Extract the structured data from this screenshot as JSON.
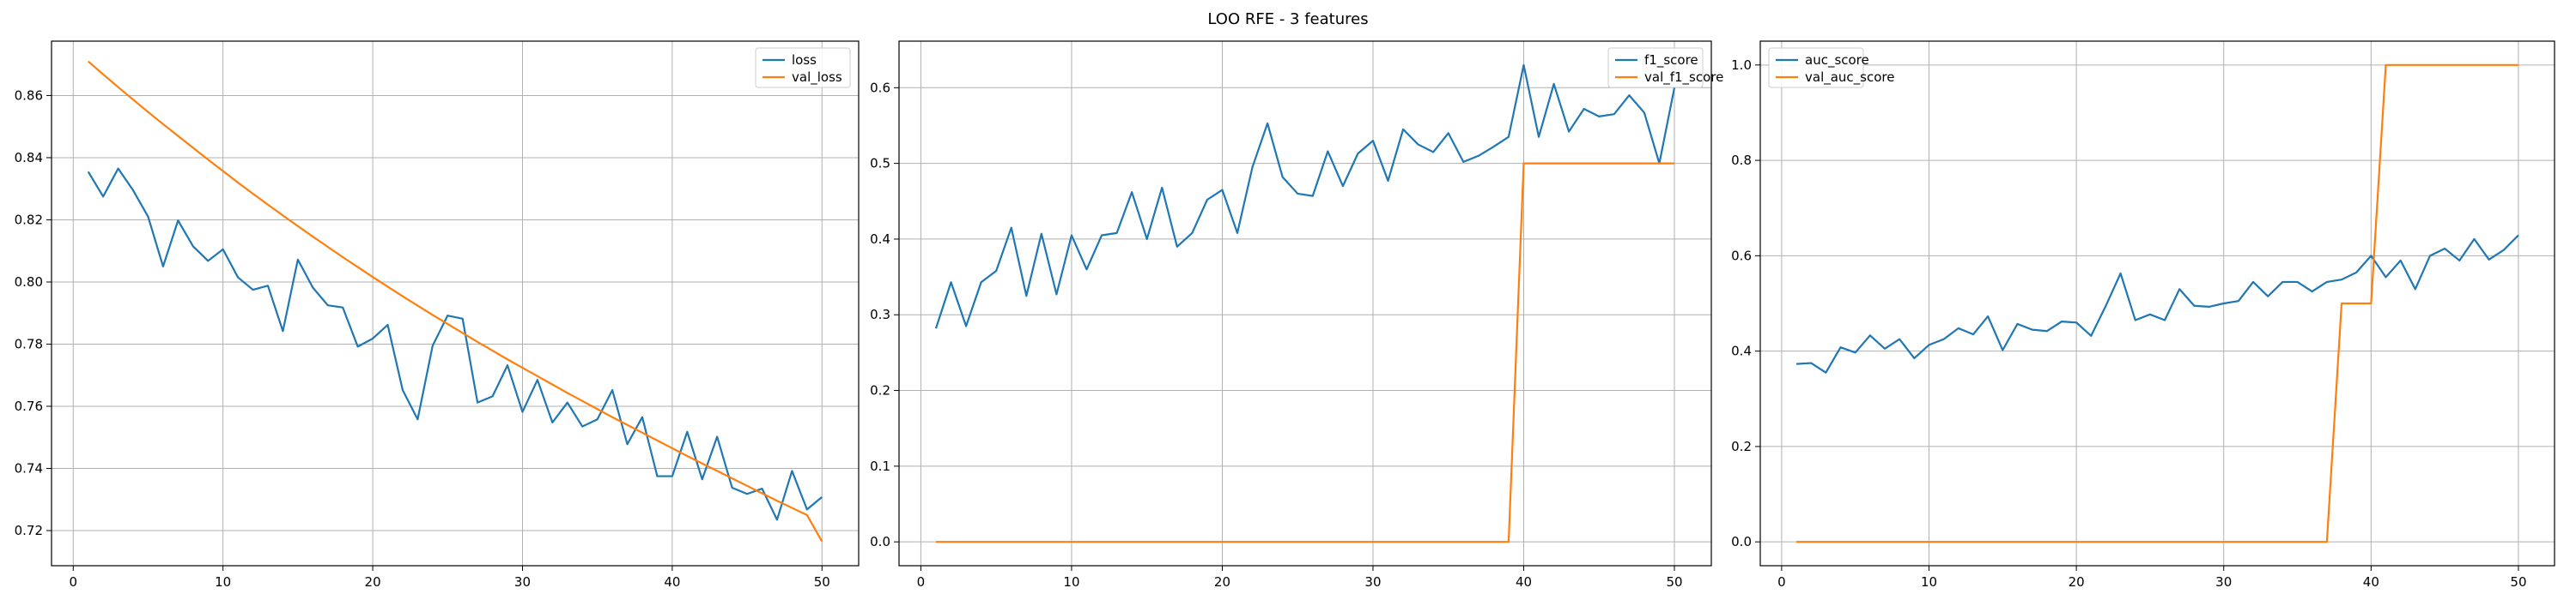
{
  "figure": {
    "suptitle": "LOO RFE - 3 features"
  },
  "colors": {
    "series1": "#1f77b4",
    "series2": "#ff7f0e",
    "grid": "#b0b0b0"
  },
  "chart_data": [
    {
      "type": "line",
      "grid": true,
      "legend_position": "top-right",
      "xlim": [
        -1.45,
        52.45
      ],
      "ylim": [
        0.7087,
        0.8775
      ],
      "xticks": [
        0,
        10,
        20,
        30,
        40,
        50
      ],
      "yticks": [
        0.72,
        0.74,
        0.76,
        0.78,
        0.8,
        0.82,
        0.84,
        0.86
      ],
      "ytick_labels": [
        "0.72",
        "0.74",
        "0.76",
        "0.78",
        "0.80",
        "0.82",
        "0.84",
        "0.86"
      ],
      "x": [
        1,
        2,
        3,
        4,
        5,
        6,
        7,
        8,
        9,
        10,
        11,
        12,
        13,
        14,
        15,
        16,
        17,
        18,
        19,
        20,
        21,
        22,
        23,
        24,
        25,
        26,
        27,
        28,
        29,
        30,
        31,
        32,
        33,
        34,
        35,
        36,
        37,
        38,
        39,
        40,
        41,
        42,
        43,
        44,
        45,
        46,
        47,
        48,
        49,
        50
      ],
      "series": [
        {
          "name": "loss",
          "values": [
            0.8355,
            0.8275,
            0.8365,
            0.8295,
            0.821,
            0.805,
            0.8198,
            0.8115,
            0.8068,
            0.8105,
            0.8015,
            0.7975,
            0.7988,
            0.7842,
            0.8072,
            0.7982,
            0.7925,
            0.7918,
            0.7792,
            0.7818,
            0.7862,
            0.7652,
            0.7558,
            0.7795,
            0.7892,
            0.7882,
            0.7612,
            0.7632,
            0.7732,
            0.7582,
            0.7685,
            0.7548,
            0.7612,
            0.7535,
            0.7558,
            0.7652,
            0.7478,
            0.7565,
            0.7375,
            0.7375,
            0.7518,
            0.7365,
            0.7502,
            0.7338,
            0.7318,
            0.7335,
            0.7235,
            0.7392,
            0.7268,
            0.7308
          ]
        },
        {
          "name": "val_loss",
          "values": [
            0.871,
            0.8668,
            0.8627,
            0.8587,
            0.8547,
            0.8508,
            0.847,
            0.8432,
            0.8394,
            0.8357,
            0.832,
            0.8284,
            0.8249,
            0.8214,
            0.818,
            0.8146,
            0.8113,
            0.808,
            0.8048,
            0.8016,
            0.7985,
            0.7954,
            0.7924,
            0.7894,
            0.7865,
            0.7836,
            0.7807,
            0.7779,
            0.7751,
            0.7724,
            0.7697,
            0.767,
            0.7643,
            0.7617,
            0.7591,
            0.7565,
            0.754,
            0.7515,
            0.749,
            0.7465,
            0.744,
            0.7416,
            0.7392,
            0.7368,
            0.7344,
            0.732,
            0.7296,
            0.7273,
            0.725,
            0.7165
          ]
        }
      ]
    },
    {
      "type": "line",
      "grid": true,
      "legend_position": "top-right",
      "xlim": [
        -1.45,
        52.45
      ],
      "ylim": [
        -0.0315,
        0.6615
      ],
      "xticks": [
        0,
        10,
        20,
        30,
        40,
        50
      ],
      "yticks": [
        0.0,
        0.1,
        0.2,
        0.3,
        0.4,
        0.5,
        0.6
      ],
      "ytick_labels": [
        "0.0",
        "0.1",
        "0.2",
        "0.3",
        "0.4",
        "0.5",
        "0.6"
      ],
      "x": [
        1,
        2,
        3,
        4,
        5,
        6,
        7,
        8,
        9,
        10,
        11,
        12,
        13,
        14,
        15,
        16,
        17,
        18,
        19,
        20,
        21,
        22,
        23,
        24,
        25,
        26,
        27,
        28,
        29,
        30,
        31,
        32,
        33,
        34,
        35,
        36,
        37,
        38,
        39,
        40,
        41,
        42,
        43,
        44,
        45,
        46,
        47,
        48,
        49,
        50
      ],
      "series": [
        {
          "name": "f1_score",
          "values": [
            0.282,
            0.343,
            0.285,
            0.343,
            0.358,
            0.415,
            0.325,
            0.407,
            0.327,
            0.405,
            0.36,
            0.405,
            0.408,
            0.462,
            0.4,
            0.468,
            0.39,
            0.408,
            0.452,
            0.465,
            0.408,
            0.495,
            0.553,
            0.482,
            0.46,
            0.457,
            0.516,
            0.47,
            0.513,
            0.53,
            0.477,
            0.545,
            0.525,
            0.515,
            0.54,
            0.502,
            0.51,
            0.522,
            0.535,
            0.63,
            0.535,
            0.605,
            0.542,
            0.572,
            0.562,
            0.565,
            0.59,
            0.567,
            0.5,
            0.6
          ]
        },
        {
          "name": "val_f1_score",
          "values": [
            0,
            0,
            0,
            0,
            0,
            0,
            0,
            0,
            0,
            0,
            0,
            0,
            0,
            0,
            0,
            0,
            0,
            0,
            0,
            0,
            0,
            0,
            0,
            0,
            0,
            0,
            0,
            0,
            0,
            0,
            0,
            0,
            0,
            0,
            0,
            0,
            0,
            0,
            0,
            0.5,
            0.5,
            0.5,
            0.5,
            0.5,
            0.5,
            0.5,
            0.5,
            0.5,
            0.5,
            0.5
          ]
        }
      ]
    },
    {
      "type": "line",
      "grid": true,
      "legend_position": "top-left",
      "xlim": [
        -1.45,
        52.45
      ],
      "ylim": [
        -0.05,
        1.05
      ],
      "xticks": [
        0,
        10,
        20,
        30,
        40,
        50
      ],
      "yticks": [
        0.0,
        0.2,
        0.4,
        0.6,
        0.8,
        1.0
      ],
      "ytick_labels": [
        "0.0",
        "0.2",
        "0.4",
        "0.6",
        "0.8",
        "1.0"
      ],
      "x": [
        1,
        2,
        3,
        4,
        5,
        6,
        7,
        8,
        9,
        10,
        11,
        12,
        13,
        14,
        15,
        16,
        17,
        18,
        19,
        20,
        21,
        22,
        23,
        24,
        25,
        26,
        27,
        28,
        29,
        30,
        31,
        32,
        33,
        34,
        35,
        36,
        37,
        38,
        39,
        40,
        41,
        42,
        43,
        44,
        45,
        46,
        47,
        48,
        49,
        50
      ],
      "series": [
        {
          "name": "auc_score",
          "values": [
            0.373,
            0.375,
            0.355,
            0.408,
            0.397,
            0.433,
            0.405,
            0.425,
            0.385,
            0.413,
            0.425,
            0.448,
            0.435,
            0.473,
            0.402,
            0.457,
            0.445,
            0.442,
            0.462,
            0.46,
            0.432,
            0.495,
            0.563,
            0.465,
            0.477,
            0.465,
            0.53,
            0.495,
            0.493,
            0.5,
            0.505,
            0.545,
            0.515,
            0.545,
            0.545,
            0.525,
            0.545,
            0.55,
            0.565,
            0.6,
            0.555,
            0.59,
            0.53,
            0.6,
            0.615,
            0.59,
            0.635,
            0.592,
            0.612,
            0.643
          ]
        },
        {
          "name": "val_auc_score",
          "values": [
            0,
            0,
            0,
            0,
            0,
            0,
            0,
            0,
            0,
            0,
            0,
            0,
            0,
            0,
            0,
            0,
            0,
            0,
            0,
            0,
            0,
            0,
            0,
            0,
            0,
            0,
            0,
            0,
            0,
            0,
            0,
            0,
            0,
            0,
            0,
            0,
            0,
            0.5,
            0.5,
            0.5,
            1,
            1,
            1,
            1,
            1,
            1,
            1,
            1,
            1,
            1
          ]
        }
      ]
    }
  ]
}
